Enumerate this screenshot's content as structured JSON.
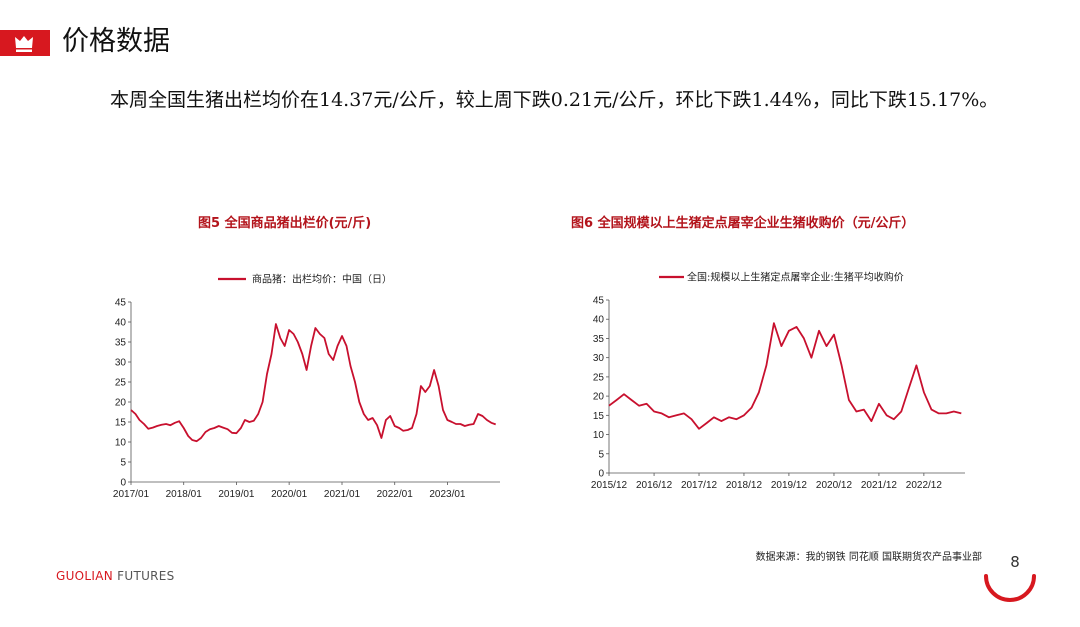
{
  "header": {
    "title": "价格数据",
    "accent_color": "#d7181f",
    "icon": "crown-icon"
  },
  "summary": "本周全国生猪出栏均价在14.37元/公斤，较上周下跌0.21元/公斤，环比下跌1.44%，同比下跌15.17%。",
  "footer": {
    "source": "数据来源：我的钢铁  同花顺  国联期货农产品事业部",
    "brand_part1": "GUOLIAN",
    "brand_part2": " FUTURES",
    "page_number": "8"
  },
  "chart_data": [
    {
      "type": "line",
      "title": "图5  全国商品猪出栏价(元/斤)",
      "legend": "商品猪：出栏均价：中国（日）",
      "ylim": [
        0,
        45
      ],
      "yticks": [
        0,
        5,
        10,
        15,
        20,
        25,
        30,
        35,
        40,
        45
      ],
      "xlim": [
        "2017-01-01",
        "2023-12-31"
      ],
      "xticks": [
        "2017/01",
        "2018/01",
        "2019/01",
        "2020/01",
        "2021/01",
        "2022/01",
        "2023/01"
      ],
      "color": "#c8102e",
      "series": [
        {
          "x": [
            "2017-01-01",
            "2017-02-01",
            "2017-03-01",
            "2017-04-01",
            "2017-05-01",
            "2017-06-01",
            "2017-07-01",
            "2017-08-01",
            "2017-09-01",
            "2017-10-01",
            "2017-11-01",
            "2017-12-01",
            "2018-01-01",
            "2018-02-01",
            "2018-03-01",
            "2018-04-01",
            "2018-05-01",
            "2018-06-01",
            "2018-07-01",
            "2018-08-01",
            "2018-09-01",
            "2018-10-01",
            "2018-11-01",
            "2018-12-01",
            "2019-01-01",
            "2019-02-01",
            "2019-03-01",
            "2019-04-01",
            "2019-05-01",
            "2019-06-01",
            "2019-07-01",
            "2019-08-01",
            "2019-09-01",
            "2019-10-01",
            "2019-11-01",
            "2019-12-01",
            "2020-01-01",
            "2020-02-01",
            "2020-03-01",
            "2020-04-01",
            "2020-05-01",
            "2020-06-01",
            "2020-07-01",
            "2020-08-01",
            "2020-09-01",
            "2020-10-01",
            "2020-11-01",
            "2020-12-01",
            "2021-01-01",
            "2021-02-01",
            "2021-03-01",
            "2021-04-01",
            "2021-05-01",
            "2021-06-01",
            "2021-07-01",
            "2021-08-01",
            "2021-09-01",
            "2021-10-01",
            "2021-11-01",
            "2021-12-01",
            "2022-01-01",
            "2022-02-01",
            "2022-03-01",
            "2022-04-01",
            "2022-05-01",
            "2022-06-01",
            "2022-07-01",
            "2022-08-01",
            "2022-09-01",
            "2022-10-01",
            "2022-11-01",
            "2022-12-01",
            "2023-01-01",
            "2023-02-01",
            "2023-03-01",
            "2023-04-01",
            "2023-05-01",
            "2023-06-01",
            "2023-07-01",
            "2023-08-01",
            "2023-09-01",
            "2023-10-01",
            "2023-11-01",
            "2023-12-01"
          ],
          "y": [
            18,
            17,
            15.5,
            14.5,
            13.3,
            13.6,
            14,
            14.3,
            14.5,
            14.2,
            14.8,
            15.2,
            13.5,
            11.5,
            10.5,
            10.2,
            11,
            12.5,
            13.2,
            13.5,
            14,
            13.6,
            13.2,
            12.3,
            12.2,
            13.5,
            15.5,
            15,
            15.3,
            17,
            20,
            27,
            32,
            39.5,
            36,
            34,
            38,
            37,
            35,
            32,
            28,
            34,
            38.5,
            37,
            36,
            32,
            30.5,
            34,
            36.5,
            34,
            29,
            25,
            20,
            17,
            15.5,
            16,
            14.2,
            11,
            15.5,
            16.5,
            14,
            13.5,
            12.8,
            13,
            13.5,
            17,
            24,
            22.5,
            24,
            28,
            24,
            18,
            15.5,
            15,
            14.5,
            14.5,
            14,
            14.3,
            14.5,
            17,
            16.5,
            15.5,
            14.8,
            14.4
          ]
        }
      ]
    },
    {
      "type": "line",
      "title": "图6  全国规模以上生猪定点屠宰企业生猪收购价（元/公斤）",
      "legend": "全国:规模以上生猪定点屠宰企业:生猪平均收购价",
      "ylim": [
        0,
        45
      ],
      "yticks": [
        0,
        5,
        10,
        15,
        20,
        25,
        30,
        35,
        40,
        45
      ],
      "xlim": [
        "2015-12-01",
        "2023-10-31"
      ],
      "xticks": [
        "2015/12",
        "2016/12",
        "2017/12",
        "2018/12",
        "2019/12",
        "2020/12",
        "2021/12",
        "2022/12"
      ],
      "color": "#c8102e",
      "series": [
        {
          "x": [
            "2015-12-01",
            "2016-02-01",
            "2016-04-01",
            "2016-06-01",
            "2016-08-01",
            "2016-10-01",
            "2016-12-01",
            "2017-02-01",
            "2017-04-01",
            "2017-06-01",
            "2017-08-01",
            "2017-10-01",
            "2017-12-01",
            "2018-02-01",
            "2018-04-01",
            "2018-06-01",
            "2018-08-01",
            "2018-10-01",
            "2018-12-01",
            "2019-02-01",
            "2019-04-01",
            "2019-06-01",
            "2019-08-01",
            "2019-10-01",
            "2019-12-01",
            "2020-02-01",
            "2020-04-01",
            "2020-06-01",
            "2020-08-01",
            "2020-10-01",
            "2020-12-01",
            "2021-02-01",
            "2021-04-01",
            "2021-06-01",
            "2021-08-01",
            "2021-10-01",
            "2021-12-01",
            "2022-02-01",
            "2022-04-01",
            "2022-06-01",
            "2022-08-01",
            "2022-10-01",
            "2022-12-01",
            "2023-02-01",
            "2023-04-01",
            "2023-06-01",
            "2023-08-01",
            "2023-10-01"
          ],
          "y": [
            17.5,
            19,
            20.5,
            19,
            17.5,
            18,
            16,
            15.5,
            14.5,
            15,
            15.5,
            14,
            11.5,
            13,
            14.5,
            13.5,
            14.5,
            14,
            15,
            17,
            21,
            28,
            39,
            33,
            37,
            38,
            35,
            30,
            37,
            33,
            36,
            28,
            19,
            16,
            16.5,
            13.5,
            18,
            15,
            14,
            16,
            22,
            28,
            21,
            16.5,
            15.5,
            15.5,
            16,
            15.5
          ]
        }
      ]
    }
  ]
}
